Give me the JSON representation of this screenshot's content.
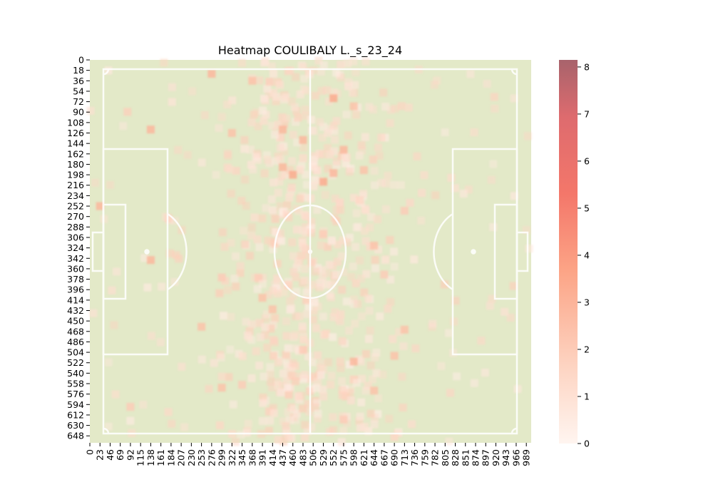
{
  "chart_data": {
    "type": "heatmap",
    "title": "Heatmap COULIBALY L._s_23_24",
    "xlabel": "",
    "ylabel": "",
    "x_ticks": [
      "0",
      "23",
      "46",
      "69",
      "92",
      "115",
      "138",
      "161",
      "184",
      "207",
      "230",
      "253",
      "276",
      "299",
      "322",
      "345",
      "368",
      "391",
      "414",
      "437",
      "460",
      "483",
      "506",
      "529",
      "552",
      "575",
      "598",
      "621",
      "644",
      "667",
      "690",
      "713",
      "736",
      "759",
      "782",
      "805",
      "828",
      "851",
      "874",
      "897",
      "920",
      "943",
      "966",
      "989"
    ],
    "y_ticks": [
      "0",
      "18",
      "36",
      "54",
      "72",
      "90",
      "108",
      "126",
      "144",
      "162",
      "180",
      "198",
      "216",
      "234",
      "252",
      "270",
      "288",
      "306",
      "324",
      "342",
      "360",
      "378",
      "396",
      "414",
      "432",
      "450",
      "468",
      "486",
      "504",
      "522",
      "540",
      "558",
      "576",
      "594",
      "612",
      "630",
      "648"
    ],
    "xlim": [
      0,
      1000
    ],
    "ylim": [
      0,
      660
    ],
    "colorbar": {
      "min": 0,
      "max": 8.15,
      "ticks": [
        "0",
        "1",
        "2",
        "3",
        "4",
        "5",
        "6",
        "7",
        "8"
      ],
      "colors": [
        "#fff5f0",
        "#fdd4c2",
        "#fca486",
        "#f4776a",
        "#de6b6e",
        "#a8636c"
      ]
    },
    "pitch_color": "#e3e9c8",
    "line_color": "#ffffff",
    "hotspots": [
      {
        "x": 276,
        "y": 24,
        "v": 3
      },
      {
        "x": 368,
        "y": 36,
        "v": 2.5
      },
      {
        "x": 552,
        "y": 66,
        "v": 3.5
      },
      {
        "x": 138,
        "y": 120,
        "v": 3
      },
      {
        "x": 322,
        "y": 126,
        "v": 2.5
      },
      {
        "x": 437,
        "y": 120,
        "v": 3
      },
      {
        "x": 460,
        "y": 198,
        "v": 3.5
      },
      {
        "x": 437,
        "y": 185,
        "v": 3
      },
      {
        "x": 529,
        "y": 210,
        "v": 3.5
      },
      {
        "x": 552,
        "y": 195,
        "v": 3
      },
      {
        "x": 621,
        "y": 190,
        "v": 2.5
      },
      {
        "x": 575,
        "y": 155,
        "v": 3
      },
      {
        "x": 23,
        "y": 252,
        "v": 3
      },
      {
        "x": 138,
        "y": 345,
        "v": 3
      },
      {
        "x": 483,
        "y": 138,
        "v": 3
      },
      {
        "x": 598,
        "y": 80,
        "v": 2.5
      },
      {
        "x": 644,
        "y": 320,
        "v": 2.5
      },
      {
        "x": 713,
        "y": 260,
        "v": 2
      },
      {
        "x": 391,
        "y": 410,
        "v": 2.5
      },
      {
        "x": 414,
        "y": 430,
        "v": 2.5
      },
      {
        "x": 253,
        "y": 460,
        "v": 2.5
      },
      {
        "x": 713,
        "y": 465,
        "v": 2.5
      },
      {
        "x": 598,
        "y": 520,
        "v": 3
      },
      {
        "x": 483,
        "y": 500,
        "v": 2
      },
      {
        "x": 690,
        "y": 510,
        "v": 2.5
      },
      {
        "x": 299,
        "y": 565,
        "v": 2.5
      },
      {
        "x": 644,
        "y": 570,
        "v": 2.5
      },
      {
        "x": 345,
        "y": 560,
        "v": 2
      },
      {
        "x": 529,
        "y": 300,
        "v": 2
      },
      {
        "x": 299,
        "y": 375,
        "v": 2
      },
      {
        "x": 667,
        "y": 370,
        "v": 2
      },
      {
        "x": 92,
        "y": 598,
        "v": 2
      },
      {
        "x": 575,
        "y": 620,
        "v": 2
      },
      {
        "x": 690,
        "y": 650,
        "v": 1.5
      }
    ]
  }
}
